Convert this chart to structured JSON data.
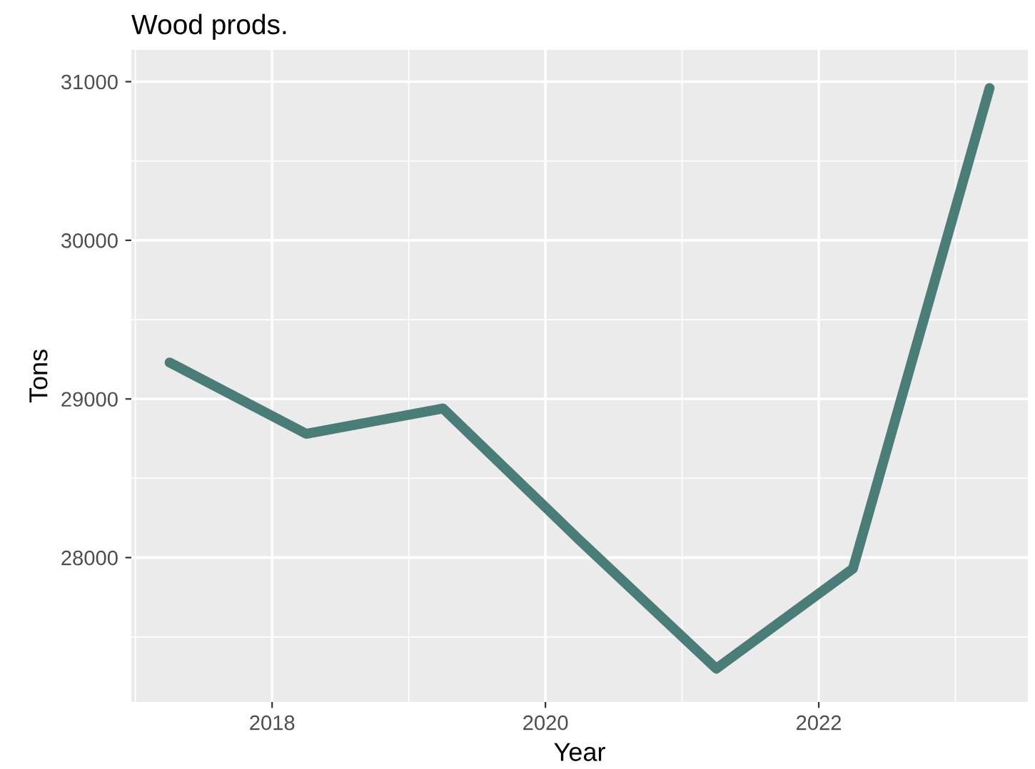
{
  "chart_data": {
    "type": "line",
    "title": "Wood prods.",
    "xlabel": "Year",
    "ylabel": "Tons",
    "x": [
      2017.25,
      2018.25,
      2019.25,
      2020.25,
      2021.25,
      2022.25,
      2023.25
    ],
    "series": [
      {
        "color": "#4a7c78",
        "values": [
          29230,
          28780,
          28940,
          28110,
          27300,
          27930,
          30960
        ]
      }
    ],
    "xlim": [
      2016.97,
      2023.53
    ],
    "ylim": [
      27090,
      31200
    ],
    "xticks": [
      2018,
      2020,
      2022
    ],
    "yticks": [
      28000,
      29000,
      30000,
      31000
    ],
    "grid": true,
    "marker": "none",
    "line_style": "solid"
  }
}
